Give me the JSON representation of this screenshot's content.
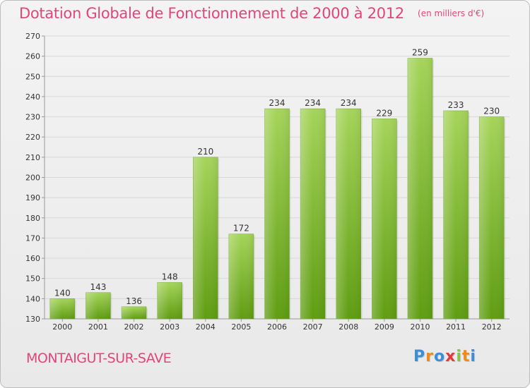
{
  "header": {
    "title": "Dotation Globale de Fonctionnement de 2000 à 2012",
    "unit": "(en milliers d'€)"
  },
  "footer": {
    "place": "MONTAIGUT-SUR-SAVE",
    "brand": [
      "P",
      "r",
      "o",
      "x",
      "i",
      "t",
      "i"
    ],
    "brand_colors": [
      "#3a8fd6",
      "#f08a1c",
      "#3a8fd6",
      "#e23a3a",
      "#8bc34a",
      "#f08a1c",
      "#3a8fd6"
    ]
  },
  "colors": {
    "bar_top": "#a5d45a",
    "bar_bottom": "#5f9d12",
    "grid": "#d8d8d8",
    "axis": "#999999",
    "text_accent": "#e0457b"
  },
  "chart_data": {
    "type": "bar",
    "categories": [
      "2000",
      "2001",
      "2002",
      "2003",
      "2004",
      "2005",
      "2006",
      "2007",
      "2008",
      "2009",
      "2010",
      "2011",
      "2012"
    ],
    "values": [
      140,
      143,
      136,
      148,
      210,
      172,
      234,
      234,
      234,
      229,
      259,
      233,
      230
    ],
    "ylim": [
      130,
      270
    ],
    "yticks": [
      130,
      140,
      150,
      160,
      170,
      180,
      190,
      200,
      210,
      220,
      230,
      240,
      250,
      260,
      270
    ],
    "grid": true,
    "title": "Dotation Globale de Fonctionnement de 2000 à 2012",
    "xlabel": "",
    "ylabel": ""
  }
}
